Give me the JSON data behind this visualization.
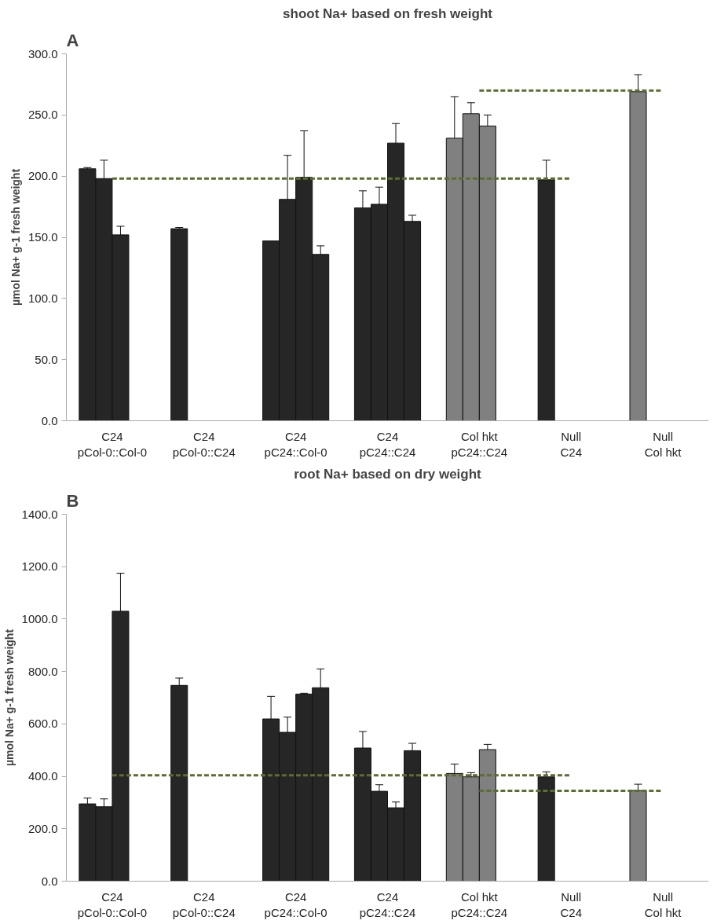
{
  "chart_data": [
    {
      "type": "bar",
      "title": "shoot Na+ based on fresh weight",
      "ylabel": "µmol Na+ g-1 fresh weight",
      "annotations": [
        "A"
      ],
      "categories": [
        "C24\npCol-0::Col-0",
        "C24\npCol-0::C24",
        "C24\npC24::Col-0",
        "C24\npC24::C24",
        "Col hkt\npC24::C24",
        "Null\nC24",
        "Null\nCol hkt"
      ],
      "ylim": [
        0,
        300
      ],
      "yticks": [
        {
          "value": 0,
          "label": "0.0"
        },
        {
          "value": 50,
          "label": "50.0"
        },
        {
          "value": 100,
          "label": "100.0"
        },
        {
          "value": 150,
          "label": "150.0"
        },
        {
          "value": 200,
          "label": "200.0"
        },
        {
          "value": 250,
          "label": "250.0"
        },
        {
          "value": 300,
          "label": "300.0"
        }
      ],
      "grid": false,
      "series": [
        {
          "values": [
            206,
            157,
            147,
            174,
            231,
            197,
            269
          ],
          "errors": [
            1,
            1,
            null,
            14,
            34,
            16,
            14
          ],
          "colors": [
            "#262626",
            "#262626",
            "#262626",
            "#262626",
            "#808080",
            "#262626",
            "#808080"
          ]
        },
        {
          "values": [
            198,
            null,
            181,
            177,
            251,
            null,
            null
          ],
          "errors": [
            15,
            null,
            36,
            14,
            9,
            null,
            null
          ],
          "colors": [
            "#262626",
            null,
            "#262626",
            "#262626",
            "#808080",
            null,
            null
          ]
        },
        {
          "values": [
            152,
            null,
            199,
            227,
            241,
            null,
            null
          ],
          "errors": [
            7,
            null,
            38,
            16,
            9,
            null,
            null
          ],
          "colors": [
            "#262626",
            null,
            "#262626",
            "#262626",
            "#808080",
            null,
            null
          ]
        },
        {
          "values": [
            null,
            null,
            136,
            163,
            null,
            null,
            null
          ],
          "errors": [
            null,
            null,
            7,
            5,
            null,
            null,
            null
          ],
          "colors": [
            null,
            null,
            "#262626",
            "#262626",
            null,
            null,
            null
          ]
        },
        {
          "type": "line",
          "x": [
            "C24\npCol-0::Col-0",
            "Null\nC24"
          ],
          "values": [
            198,
            198
          ],
          "color": "#5a6e2e",
          "line_style": "dashed"
        },
        {
          "type": "line",
          "x": [
            "Col hkt\npC24::C24",
            "Null\nCol hkt"
          ],
          "values": [
            270,
            270
          ],
          "color": "#5a6e2e",
          "line_style": "dashed"
        }
      ]
    },
    {
      "type": "bar",
      "title": "root Na+ based on dry weight",
      "ylabel": "µmol Na+ g-1 fresh weight",
      "annotations": [
        "B"
      ],
      "categories": [
        "C24\npCol-0::Col-0",
        "C24\npCol-0::C24",
        "C24\npC24::Col-0",
        "C24\npC24::C24",
        "Col hkt\npC24::C24",
        "Null\nC24",
        "Null\nCol hkt"
      ],
      "ylim": [
        0,
        1400
      ],
      "yticks": [
        {
          "value": 0,
          "label": "0.0"
        },
        {
          "value": 200,
          "label": "200.0"
        },
        {
          "value": 400,
          "label": "400.0"
        },
        {
          "value": 600,
          "label": "600.0"
        },
        {
          "value": 800,
          "label": "800.0"
        },
        {
          "value": 1000,
          "label": "1000.0"
        },
        {
          "value": 1200,
          "label": "1200.0"
        },
        {
          "value": 1400,
          "label": "1400.0"
        }
      ],
      "grid": false,
      "series": [
        {
          "values": [
            295,
            747,
            619,
            508,
            411,
            398,
            346
          ],
          "errors": [
            22,
            28,
            86,
            63,
            36,
            19,
            24
          ],
          "colors": [
            "#262626",
            "#262626",
            "#262626",
            "#262626",
            "#808080",
            "#262626",
            "#808080"
          ]
        },
        {
          "values": [
            284,
            null,
            568,
            343,
            398,
            null,
            null
          ],
          "errors": [
            30,
            null,
            58,
            25,
            16,
            null,
            null
          ],
          "colors": [
            "#262626",
            null,
            "#262626",
            "#262626",
            "#808080",
            null,
            null
          ]
        },
        {
          "values": [
            1030,
            null,
            714,
            280,
            502,
            null,
            null
          ],
          "errors": [
            145,
            null,
            3,
            22,
            20,
            null,
            null
          ],
          "colors": [
            "#262626",
            null,
            "#262626",
            "#262626",
            "#808080",
            null,
            null
          ]
        },
        {
          "values": [
            null,
            null,
            738,
            498,
            null,
            null,
            null
          ],
          "errors": [
            null,
            null,
            72,
            28,
            null,
            null,
            null
          ],
          "colors": [
            null,
            null,
            "#262626",
            "#262626",
            null,
            null,
            null
          ]
        },
        {
          "type": "line",
          "x": [
            "C24\npCol-0::Col-0",
            "Null\nC24"
          ],
          "values": [
            404,
            404
          ],
          "color": "#5a6e2e",
          "line_style": "dashed"
        },
        {
          "type": "line",
          "x": [
            "Col hkt\npC24::C24",
            "Null\nCol hkt"
          ],
          "values": [
            345,
            345
          ],
          "color": "#5a6e2e",
          "line_style": "dashed"
        }
      ]
    }
  ]
}
